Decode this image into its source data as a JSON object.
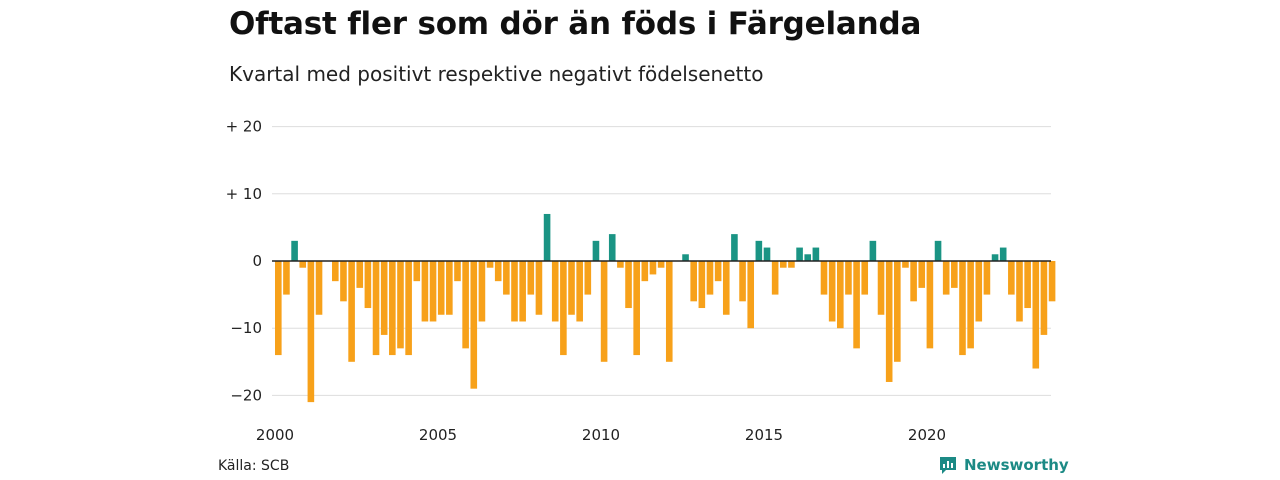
{
  "header": {
    "title": "Oftast fler som dör än föds i Färgelanda",
    "subtitle": "Kvartal med positivt respektive negativt födelsenetto"
  },
  "footer": {
    "source": "Källa: SCB",
    "brand": "Newsworthy"
  },
  "colors": {
    "positive": "#1a9484",
    "negative": "#f7a11a",
    "grid": "#dddddd",
    "baseline": "#222222",
    "brand": "#1c8a85"
  },
  "icons": {
    "brand_logo": "newsworthy-logo-icon"
  },
  "chart_data": {
    "type": "bar",
    "title": "Oftast fler som dör än föds i Färgelanda",
    "subtitle": "Kvartal med positivt respektive negativt födelsenetto",
    "xlabel": "",
    "ylabel": "",
    "ylim": [
      -21,
      20
    ],
    "xlim": [
      2000,
      2024
    ],
    "yticks": [
      {
        "value": 20,
        "label": "+ 20"
      },
      {
        "value": 10,
        "label": "+ 10"
      },
      {
        "value": 0,
        "label": "0"
      },
      {
        "value": -10,
        "label": "−10"
      },
      {
        "value": -20,
        "label": "−20"
      }
    ],
    "xticks": [
      {
        "value": 2000,
        "label": "2000"
      },
      {
        "value": 2005,
        "label": "2005"
      },
      {
        "value": 2010,
        "label": "2010"
      },
      {
        "value": 2015,
        "label": "2015"
      },
      {
        "value": 2020,
        "label": "2020"
      }
    ],
    "grid": true,
    "legend": "none",
    "start_year": 2000,
    "periods_per_year": 4,
    "values": [
      -14,
      -5,
      3,
      -1,
      -21,
      -8,
      0,
      -3,
      -6,
      -15,
      -4,
      -7,
      -14,
      -11,
      -14,
      -13,
      -14,
      -3,
      -9,
      -9,
      -8,
      -8,
      -3,
      -13,
      -19,
      -9,
      -1,
      -3,
      -5,
      -9,
      -9,
      -5,
      -8,
      7,
      -9,
      -14,
      -8,
      -9,
      -5,
      3,
      -15,
      4,
      -1,
      -7,
      -14,
      -3,
      -2,
      -1,
      -15,
      0,
      1,
      -6,
      -7,
      -5,
      -3,
      -8,
      4,
      -6,
      -10,
      3,
      2,
      -5,
      -1,
      -1,
      2,
      1,
      2,
      -5,
      -9,
      -10,
      -5,
      -13,
      -5,
      3,
      -8,
      -18,
      -15,
      -1,
      -6,
      -4,
      -13,
      3,
      -5,
      -4,
      -14,
      -13,
      -9,
      -5,
      1,
      2,
      -5,
      -9,
      -7,
      -16,
      -11,
      -6
    ]
  }
}
